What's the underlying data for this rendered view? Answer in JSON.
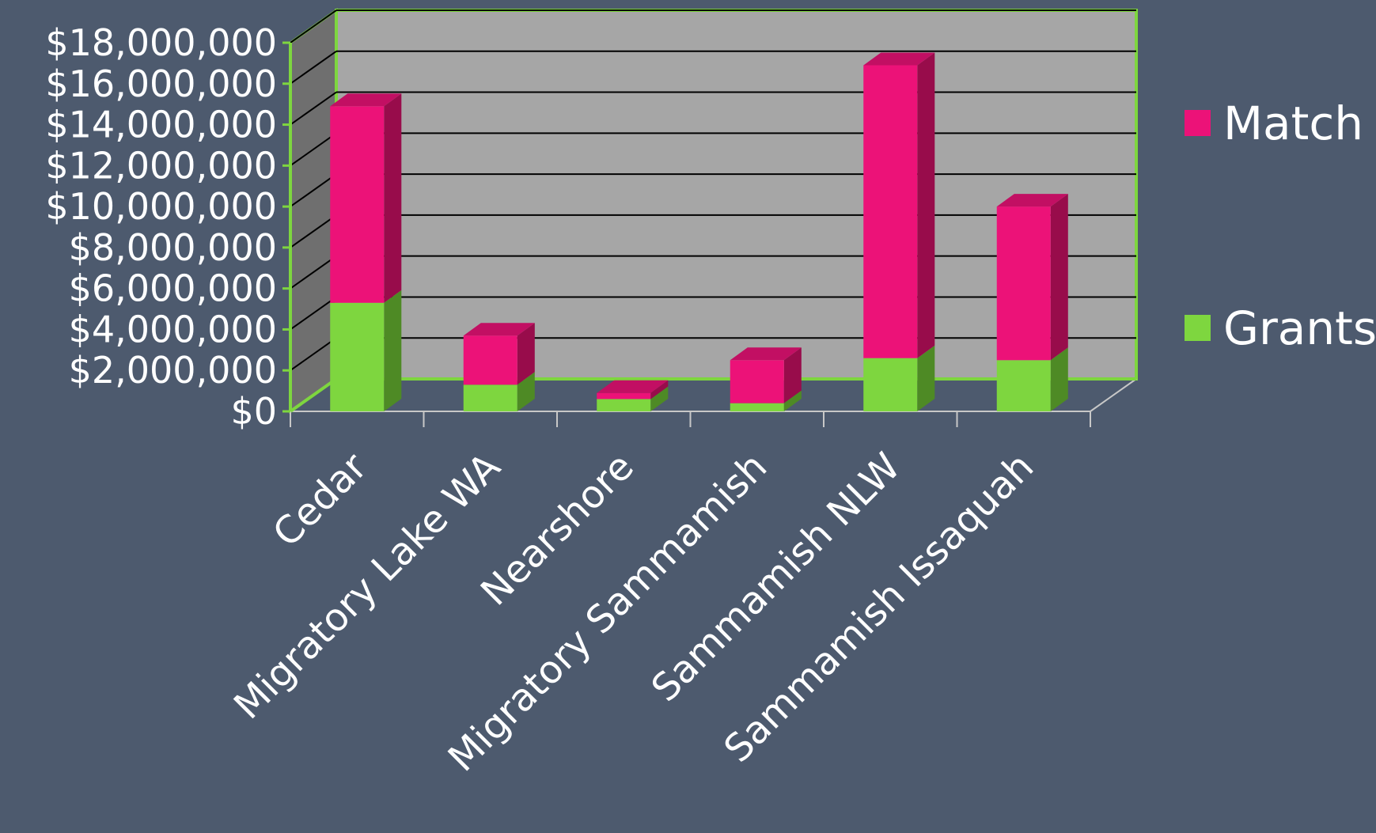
{
  "chart_data": {
    "type": "bar",
    "stacked": true,
    "three_d": true,
    "categories": [
      "Cedar",
      "Migratory Lake WA",
      "Nearshore",
      "Migratory Sammamish",
      "Sammamish NLW",
      "Sammamish Issaquah"
    ],
    "series": [
      {
        "name": "Grants",
        "values": [
          5300000,
          1300000,
          600000,
          400000,
          2600000,
          2500000
        ]
      },
      {
        "name": "Match",
        "values": [
          9600000,
          2400000,
          300000,
          2100000,
          14300000,
          7500000
        ]
      }
    ],
    "y_tick_labels": [
      "$0",
      "$2,000,000",
      "$4,000,000",
      "$6,000,000",
      "$8,000,000",
      "$10,000,000",
      "$12,000,000",
      "$14,000,000",
      "$16,000,000",
      "$18,000,000"
    ],
    "ylim": [
      0,
      18000000
    ],
    "y_step": 2000000,
    "grid": true,
    "legend_position": "right",
    "legend_order": [
      "Match",
      "Grants"
    ],
    "colors": {
      "background": "#4d5a6e",
      "plot_back_wall": "#a6a6a6",
      "plot_side_wall": "#6f6f6f",
      "plot_border": "#7ed63f",
      "gridline": "#000000",
      "Grants": "#7ed63f",
      "Grants_side": "#4e8a25",
      "Grants_top": "#8fe04f",
      "Match": "#ec1278",
      "Match_side": "#980c4b",
      "Match_top": "#c20f63"
    }
  }
}
